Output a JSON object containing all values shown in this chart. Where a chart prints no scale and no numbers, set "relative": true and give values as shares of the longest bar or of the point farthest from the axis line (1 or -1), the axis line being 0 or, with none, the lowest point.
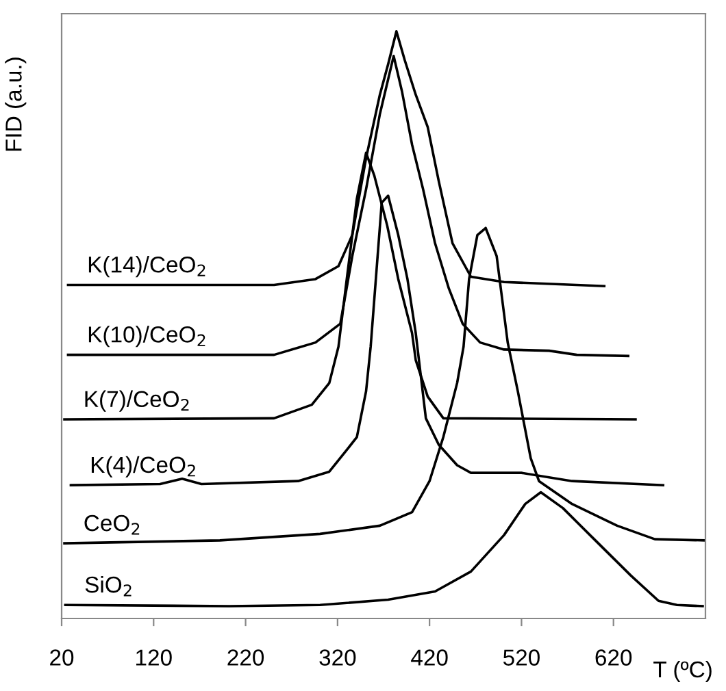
{
  "chart_data": {
    "type": "line",
    "relative": true,
    "xlabel": "T (ºC)",
    "ylabel": "FID (a.u.)",
    "xlim": [
      20,
      720
    ],
    "xticks": [
      20,
      120,
      220,
      320,
      420,
      520,
      620
    ],
    "grid": false,
    "legend": false,
    "marker": "none",
    "line_style": "solid",
    "series": [
      {
        "name": "K(14)/CeO$_{2}$",
        "color": "#000000",
        "x": [
          27,
          251,
          296,
          321,
          336,
          351,
          366,
          375,
          384,
          393,
          405,
          418,
          430,
          445,
          465,
          501,
          610
        ],
        "values": [
          0.568,
          0.568,
          0.578,
          0.6,
          0.653,
          0.784,
          0.892,
          0.944,
          1.0,
          0.951,
          0.892,
          0.837,
          0.745,
          0.639,
          0.582,
          0.573,
          0.566
        ]
      },
      {
        "name": "K(10)/CeO$_{2}$",
        "color": "#000000",
        "x": [
          27,
          251,
          296,
          323,
          336,
          351,
          366,
          381,
          390,
          401,
          413,
          426,
          441,
          456,
          475,
          501,
          550,
          580,
          636
        ],
        "values": [
          0.449,
          0.449,
          0.47,
          0.502,
          0.617,
          0.731,
          0.859,
          0.958,
          0.898,
          0.807,
          0.731,
          0.639,
          0.562,
          0.502,
          0.47,
          0.458,
          0.456,
          0.449,
          0.447
        ]
      },
      {
        "name": "K(7)/CeO$_{2}$",
        "color": "#000000",
        "x": [
          23,
          251,
          292,
          311,
          321,
          330,
          341,
          351,
          360,
          374,
          386,
          401,
          405,
          418,
          435,
          644
        ],
        "values": [
          0.339,
          0.341,
          0.364,
          0.401,
          0.463,
          0.578,
          0.715,
          0.793,
          0.754,
          0.669,
          0.578,
          0.486,
          0.44,
          0.378,
          0.341,
          0.339
        ]
      },
      {
        "name": "K(4)/CeO$_{2}$",
        "color": "#000000",
        "x": [
          30,
          127,
          151,
          172,
          277,
          311,
          330,
          341,
          351,
          356,
          368,
          375,
          386,
          396,
          405,
          416,
          430,
          450,
          465,
          520,
          575,
          674
        ],
        "values": [
          0.227,
          0.229,
          0.238,
          0.229,
          0.234,
          0.25,
          0.287,
          0.309,
          0.387,
          0.463,
          0.708,
          0.72,
          0.653,
          0.578,
          0.486,
          0.341,
          0.296,
          0.261,
          0.248,
          0.248,
          0.234,
          0.227
        ]
      },
      {
        "name": "CeO$_{2}$",
        "color": "#000000",
        "x": [
          23,
          192,
          301,
          366,
          401,
          420,
          435,
          450,
          457,
          463,
          472,
          481,
          493,
          505,
          516,
          530,
          539,
          575,
          624,
          665,
          720
        ],
        "values": [
          0.128,
          0.133,
          0.144,
          0.158,
          0.181,
          0.234,
          0.309,
          0.401,
          0.463,
          0.578,
          0.653,
          0.665,
          0.617,
          0.47,
          0.387,
          0.273,
          0.234,
          0.195,
          0.158,
          0.135,
          0.133
        ]
      },
      {
        "name": "SiO$_{2}$",
        "color": "#000000",
        "x": [
          24,
          202,
          301,
          375,
          426,
          465,
          501,
          524,
          541,
          565,
          599,
          639,
          669,
          689,
          717
        ],
        "values": [
          0.023,
          0.021,
          0.023,
          0.032,
          0.046,
          0.08,
          0.142,
          0.195,
          0.215,
          0.188,
          0.135,
          0.073,
          0.03,
          0.023,
          0.021
        ]
      }
    ]
  }
}
